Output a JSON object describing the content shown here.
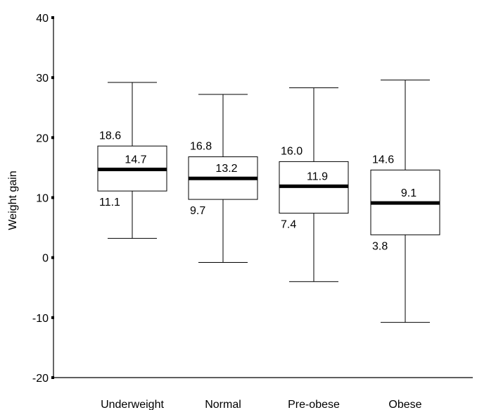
{
  "chart_data": {
    "type": "box",
    "ylabel": "Weight gain",
    "xlabel": "",
    "ylim": [
      -20,
      40
    ],
    "yticks": [
      -20,
      -10,
      0,
      10,
      20,
      30,
      40
    ],
    "grid": false,
    "colors": {
      "line": "#000000",
      "box_fill": "#ffffff",
      "background": "#ffffff"
    },
    "categories": [
      "Underweight",
      "Normal",
      "Pre-obese",
      "Obese"
    ],
    "boxes": [
      {
        "category": "Underweight",
        "whisker_low": 3.2,
        "q1": 11.1,
        "median": 14.7,
        "q3": 18.6,
        "whisker_high": 29.2,
        "labels": {
          "q3": "18.6",
          "median": "14.7",
          "q1": "11.1"
        }
      },
      {
        "category": "Normal",
        "whisker_low": -0.8,
        "q1": 9.7,
        "median": 13.2,
        "q3": 16.8,
        "whisker_high": 27.2,
        "labels": {
          "q3": "16.8",
          "median": "13.2",
          "q1": "9.7"
        }
      },
      {
        "category": "Pre-obese",
        "whisker_low": -4.0,
        "q1": 7.4,
        "median": 11.9,
        "q3": 16.0,
        "whisker_high": 28.3,
        "labels": {
          "q3": "16.0",
          "median": "11.9",
          "q1": "7.4"
        }
      },
      {
        "category": "Obese",
        "whisker_low": -10.8,
        "q1": 3.8,
        "median": 9.1,
        "q3": 14.6,
        "whisker_high": 29.6,
        "labels": {
          "q3": "14.6",
          "median": "9.1",
          "q1": "3.8"
        }
      }
    ]
  }
}
